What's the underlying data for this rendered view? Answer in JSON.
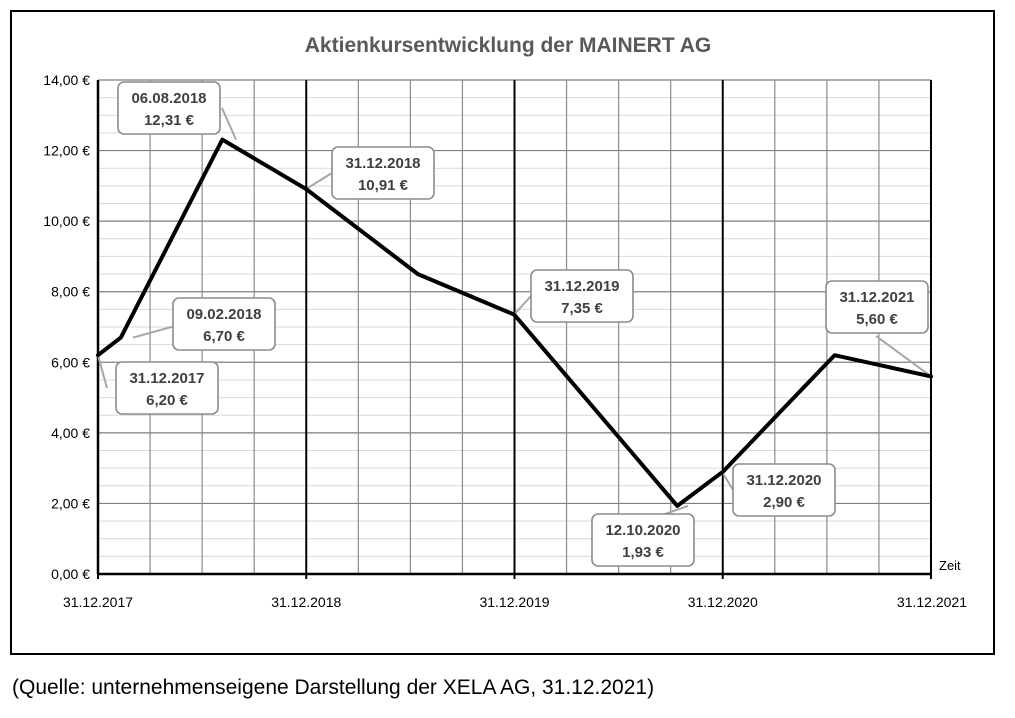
{
  "chart_data": {
    "type": "line",
    "title": "Aktienkursentwicklung der MAINERT AG",
    "xlabel": "Zeit",
    "ylabel": "",
    "ylim": [
      0,
      14
    ],
    "y_ticks": [
      "0,00 €",
      "2,00 €",
      "4,00 €",
      "6,00 €",
      "8,00 €",
      "10,00 €",
      "12,00 €",
      "14,00 €"
    ],
    "x_ticks": [
      "31.12.2017",
      "31.12.2018",
      "31.12.2019",
      "31.12.2020",
      "31.12.2021"
    ],
    "grid": true,
    "legend": "none",
    "series": [
      {
        "points": [
          {
            "x": "2017-12-31",
            "y": 6.2
          },
          {
            "x": "2018-02-09",
            "y": 6.7
          },
          {
            "x": "2018-08-06",
            "y": 12.31
          },
          {
            "x": "2018-12-31",
            "y": 10.91
          },
          {
            "x": "2019-07-15",
            "y": 8.5
          },
          {
            "x": "2019-12-31",
            "y": 7.35
          },
          {
            "x": "2020-10-12",
            "y": 1.93
          },
          {
            "x": "2020-12-31",
            "y": 2.9
          },
          {
            "x": "2021-07-15",
            "y": 6.2
          },
          {
            "x": "2021-12-31",
            "y": 5.6
          }
        ]
      }
    ],
    "annotations": [
      {
        "date": "31.12.2017",
        "value": "6,20 €"
      },
      {
        "date": "09.02.2018",
        "value": "6,70 €"
      },
      {
        "date": "06.08.2018",
        "value": "12,31 €"
      },
      {
        "date": "31.12.2018",
        "value": "10,91 €"
      },
      {
        "date": "31.12.2019",
        "value": "7,35 €"
      },
      {
        "date": "12.10.2020",
        "value": "1,93 €"
      },
      {
        "date": "31.12.2020",
        "value": "2,90 €"
      },
      {
        "date": "31.12.2021",
        "value": "5,60 €"
      }
    ]
  },
  "source": "(Quelle: unternehmenseigene Darstellung der XELA AG, 31.12.2021)"
}
